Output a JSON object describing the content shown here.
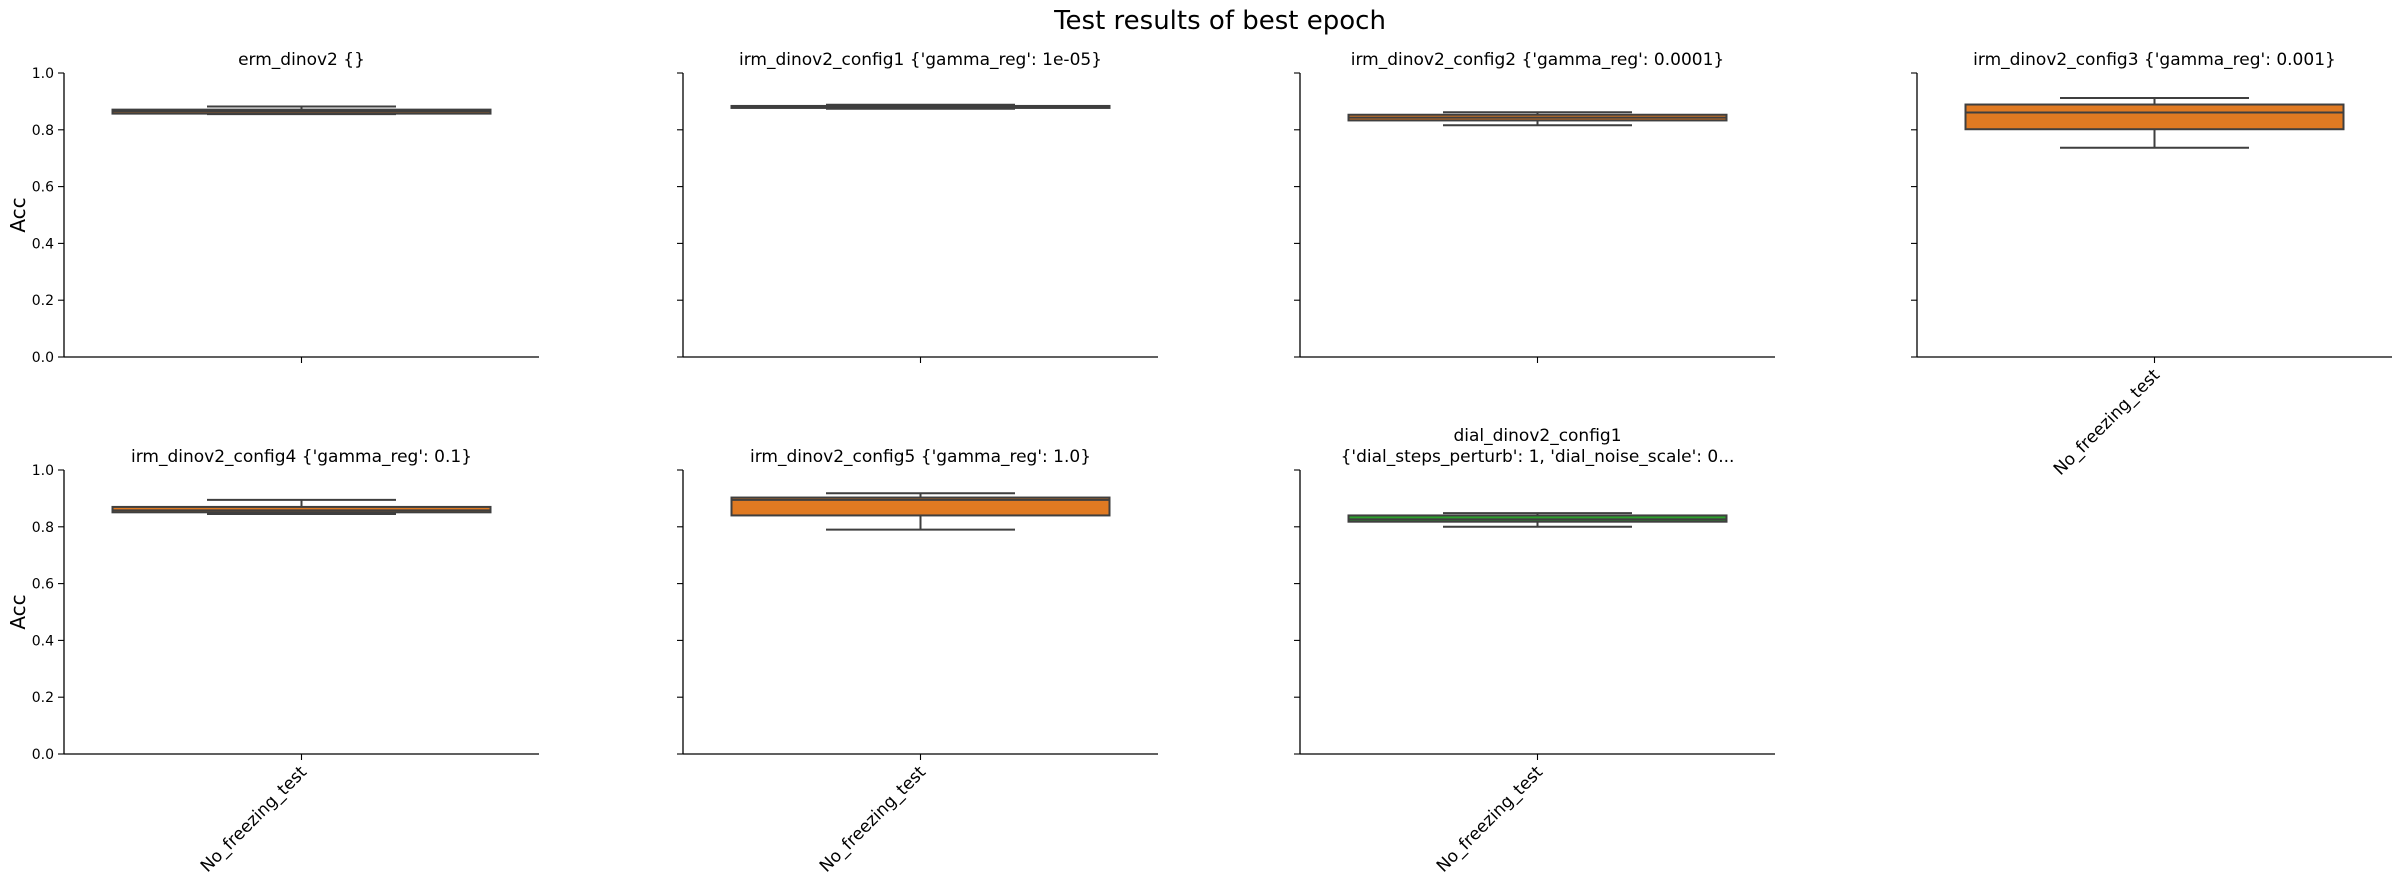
{
  "title": "Test results of best epoch",
  "colors": {
    "orange": "#e07a22",
    "green": "#2ca02c",
    "edge": "#3f3f3f"
  },
  "chart_data": [
    {
      "type": "box",
      "title_lines": [
        "erm_dinov2         {}"
      ],
      "ylabel": "Acc",
      "category": "No_freezing_test",
      "show_xtick_label": false,
      "ylim": [
        0,
        1
      ],
      "yticks": [
        "0.0",
        "0.2",
        "0.4",
        "0.6",
        "0.8",
        "1.0"
      ],
      "color": "orange",
      "box": {
        "whislo": 0.855,
        "q1": 0.857,
        "med": 0.865,
        "q3": 0.871,
        "whishi": 0.882
      }
    },
    {
      "type": "box",
      "title_lines": [
        "irm_dinov2_config1 {'gamma_reg': 1e-05}"
      ],
      "ylabel": "",
      "category": "No_freezing_test",
      "show_xtick_label": false,
      "ylim": [
        0,
        1
      ],
      "yticks": [],
      "color": "orange",
      "box": {
        "whislo": 0.874,
        "q1": 0.877,
        "med": 0.881,
        "q3": 0.884,
        "whishi": 0.888
      }
    },
    {
      "type": "box",
      "title_lines": [
        "irm_dinov2_config2 {'gamma_reg': 0.0001}"
      ],
      "ylabel": "",
      "category": "No_freezing_test",
      "show_xtick_label": false,
      "ylim": [
        0,
        1
      ],
      "yticks": [],
      "color": "orange",
      "box": {
        "whislo": 0.816,
        "q1": 0.833,
        "med": 0.843,
        "q3": 0.853,
        "whishi": 0.862
      }
    },
    {
      "type": "box",
      "title_lines": [
        "irm_dinov2_config3 {'gamma_reg': 0.001}"
      ],
      "ylabel": "",
      "category": "No_freezing_test",
      "show_xtick_label": true,
      "ylim": [
        0,
        1
      ],
      "yticks": [],
      "color": "orange",
      "box": {
        "whislo": 0.737,
        "q1": 0.802,
        "med": 0.861,
        "q3": 0.889,
        "whishi": 0.912
      }
    },
    {
      "type": "box",
      "title_lines": [
        "irm_dinov2_config4 {'gamma_reg': 0.1}"
      ],
      "ylabel": "Acc",
      "category": "No_freezing_test",
      "show_xtick_label": true,
      "ylim": [
        0,
        1
      ],
      "yticks": [
        "0.0",
        "0.2",
        "0.4",
        "0.6",
        "0.8",
        "1.0"
      ],
      "color": "orange",
      "box": {
        "whislo": 0.845,
        "q1": 0.851,
        "med": 0.858,
        "q3": 0.87,
        "whishi": 0.895
      }
    },
    {
      "type": "box",
      "title_lines": [
        "irm_dinov2_config5 {'gamma_reg': 1.0}"
      ],
      "ylabel": "",
      "category": "No_freezing_test",
      "show_xtick_label": true,
      "ylim": [
        0,
        1
      ],
      "yticks": [],
      "color": "orange",
      "box": {
        "whislo": 0.79,
        "q1": 0.84,
        "med": 0.895,
        "q3": 0.903,
        "whishi": 0.918
      }
    },
    {
      "type": "box",
      "title_lines": [
        "dial_dinov2_config1",
        "{'dial_steps_perturb': 1, 'dial_noise_scale': 0..."
      ],
      "ylabel": "",
      "category": "No_freezing_test",
      "show_xtick_label": true,
      "ylim": [
        0,
        1
      ],
      "yticks": [],
      "color": "green",
      "box": {
        "whislo": 0.8,
        "q1": 0.818,
        "med": 0.826,
        "q3": 0.84,
        "whishi": 0.848
      }
    }
  ]
}
